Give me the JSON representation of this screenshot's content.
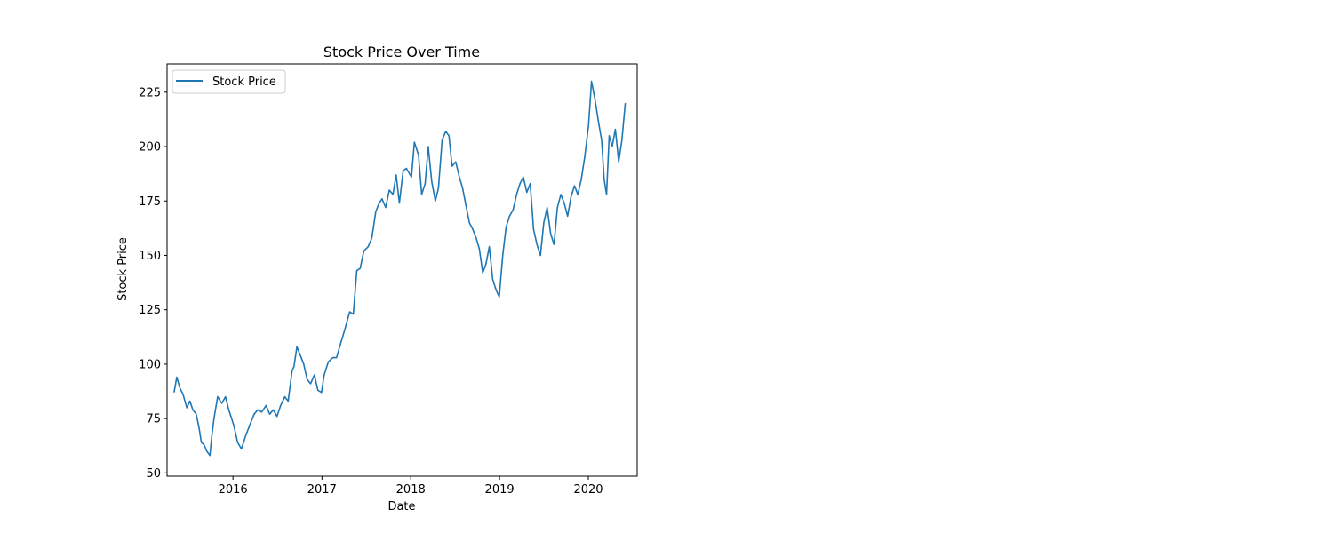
{
  "chart_data": {
    "type": "line",
    "title": "Stock Price Over Time",
    "xlabel": "Date",
    "ylabel": "Stock Price",
    "xlim": [
      "2015-04-05",
      "2020-07-20"
    ],
    "ylim": [
      48.5,
      238
    ],
    "x_ticks": [
      "2016-01-01",
      "2017-01-01",
      "2018-01-01",
      "2019-01-01",
      "2020-01-01"
    ],
    "x_tick_labels": [
      "2016",
      "2017",
      "2018",
      "2019",
      "2020"
    ],
    "y_ticks": [
      50,
      75,
      100,
      125,
      150,
      175,
      200,
      225
    ],
    "y_tick_labels": [
      "50",
      "75",
      "100",
      "125",
      "150",
      "175",
      "200",
      "225"
    ],
    "grid": false,
    "legend_position": "top-left",
    "series": [
      {
        "name": "Stock Price",
        "color": "#1f77b4",
        "x": [
          "2015-05-04",
          "2015-05-15",
          "2015-05-28",
          "2015-06-10",
          "2015-06-25",
          "2015-07-08",
          "2015-07-20",
          "2015-08-03",
          "2015-08-14",
          "2015-08-24",
          "2015-09-04",
          "2015-09-15",
          "2015-09-28",
          "2015-10-05",
          "2015-10-15",
          "2015-10-30",
          "2015-11-16",
          "2015-12-01",
          "2015-12-15",
          "2016-01-04",
          "2016-01-20",
          "2016-02-05",
          "2016-02-22",
          "2016-03-10",
          "2016-03-28",
          "2016-04-12",
          "2016-04-28",
          "2016-05-16",
          "2016-05-31",
          "2016-06-15",
          "2016-06-30",
          "2016-07-15",
          "2016-08-01",
          "2016-08-15",
          "2016-08-31",
          "2016-09-08",
          "2016-09-20",
          "2016-10-04",
          "2016-10-18",
          "2016-11-01",
          "2016-11-15",
          "2016-12-01",
          "2016-12-15",
          "2016-12-30",
          "2017-01-10",
          "2017-01-27",
          "2017-02-15",
          "2017-03-02",
          "2017-03-20",
          "2017-04-05",
          "2017-04-25",
          "2017-05-10",
          "2017-05-24",
          "2017-06-07",
          "2017-06-22",
          "2017-07-10",
          "2017-07-25",
          "2017-08-10",
          "2017-08-24",
          "2017-09-05",
          "2017-09-20",
          "2017-10-05",
          "2017-10-20",
          "2017-11-02",
          "2017-11-15",
          "2017-12-01",
          "2017-12-14",
          "2018-01-04",
          "2018-01-16",
          "2018-02-02",
          "2018-02-15",
          "2018-03-01",
          "2018-03-14",
          "2018-03-28",
          "2018-04-12",
          "2018-04-25",
          "2018-05-10",
          "2018-05-25",
          "2018-06-07",
          "2018-06-20",
          "2018-07-05",
          "2018-07-20",
          "2018-08-02",
          "2018-08-16",
          "2018-08-30",
          "2018-09-13",
          "2018-09-27",
          "2018-10-10",
          "2018-10-24",
          "2018-11-06",
          "2018-11-20",
          "2018-12-04",
          "2018-12-18",
          "2018-12-31",
          "2019-01-14",
          "2019-01-28",
          "2019-02-11",
          "2019-02-26",
          "2019-03-12",
          "2019-03-26",
          "2019-04-09",
          "2019-04-23",
          "2019-05-07",
          "2019-05-21",
          "2019-06-04",
          "2019-06-18",
          "2019-07-02",
          "2019-07-16",
          "2019-07-30",
          "2019-08-13",
          "2019-08-27",
          "2019-09-10",
          "2019-09-24",
          "2019-10-08",
          "2019-10-22",
          "2019-11-05",
          "2019-11-19",
          "2019-12-03",
          "2019-12-17",
          "2020-01-02",
          "2020-01-14",
          "2020-01-28",
          "2020-02-11",
          "2020-02-25",
          "2020-03-06",
          "2020-03-16",
          "2020-03-27",
          "2020-04-08",
          "2020-04-21",
          "2020-05-05",
          "2020-05-18",
          "2020-06-01"
        ],
        "values": [
          87,
          94,
          89,
          86,
          80,
          83,
          79,
          77,
          71,
          64,
          63,
          60,
          58,
          66,
          75,
          85,
          82,
          85,
          79,
          72,
          64,
          61,
          67,
          72,
          77,
          79,
          78,
          81,
          77,
          79,
          76,
          81,
          85,
          83,
          97,
          99,
          108,
          104,
          100,
          93,
          91,
          95,
          88,
          87,
          95,
          101,
          103,
          103,
          110,
          116,
          124,
          123,
          143,
          144,
          152,
          154,
          158,
          170,
          174,
          176,
          172,
          180,
          178,
          187,
          174,
          189,
          190,
          186,
          202,
          196,
          178,
          183,
          200,
          184,
          175,
          181,
          203,
          207,
          205,
          191,
          193,
          186,
          181,
          173,
          165,
          162,
          158,
          153,
          142,
          146,
          154,
          139,
          134,
          131,
          150,
          163,
          168,
          171,
          178,
          183,
          186,
          179,
          183,
          162,
          155,
          150,
          165,
          172,
          160,
          155,
          172,
          178,
          174,
          168,
          177,
          182,
          178,
          185,
          195,
          210,
          230,
          222,
          212,
          203,
          185,
          178,
          205,
          200,
          208,
          193,
          203,
          220
        ]
      }
    ]
  }
}
